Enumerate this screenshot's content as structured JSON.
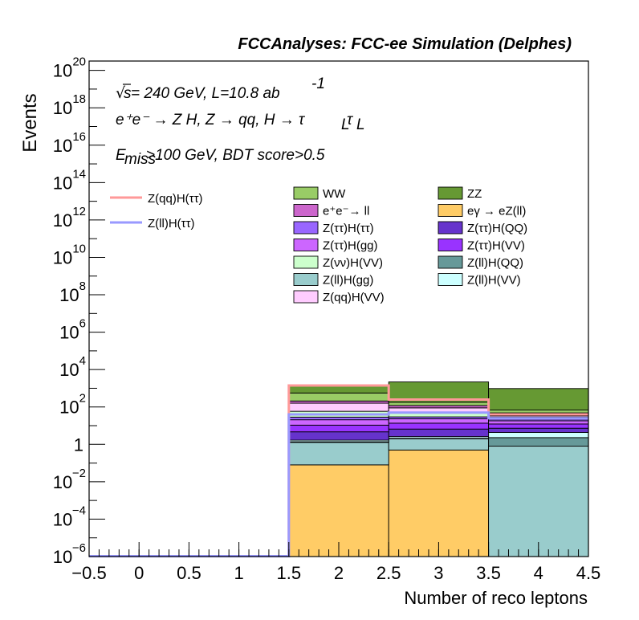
{
  "chart_data": {
    "type": "bar",
    "stacked": true,
    "log_y": true,
    "title": "FCCAnalyses: FCC-ee Simulation (Delphes)",
    "xlabel": "Number of reco leptons",
    "ylabel": "Events",
    "xlim": [
      -0.5,
      4.5
    ],
    "ylim_exp": [
      -6,
      20.5
    ],
    "bin_edges": [
      -0.5,
      0.5,
      1.5,
      2.5,
      3.5,
      4.5
    ],
    "x_ticks": [
      "−0.5",
      "0",
      "0.5",
      "1",
      "1.5",
      "2",
      "2.5",
      "3",
      "3.5",
      "4",
      "4.5"
    ],
    "y_ticks": [
      {
        "exp": 20,
        "base": "10",
        "sup": "20"
      },
      {
        "exp": 18,
        "base": "10",
        "sup": "18"
      },
      {
        "exp": 16,
        "base": "10",
        "sup": "16"
      },
      {
        "exp": 14,
        "base": "10",
        "sup": "14"
      },
      {
        "exp": 12,
        "base": "10",
        "sup": "12"
      },
      {
        "exp": 10,
        "base": "10",
        "sup": "10"
      },
      {
        "exp": 8,
        "base": "10",
        "sup": "8"
      },
      {
        "exp": 6,
        "base": "10",
        "sup": "6"
      },
      {
        "exp": 4,
        "base": "10",
        "sup": "4"
      },
      {
        "exp": 2,
        "base": "10",
        "sup": "2"
      },
      {
        "exp": 0,
        "base": "1",
        "sup": ""
      },
      {
        "exp": -2,
        "base": "10",
        "sup": "−2"
      },
      {
        "exp": -4,
        "base": "10",
        "sup": "−4"
      },
      {
        "exp": -6,
        "base": "10",
        "sup": "−6"
      }
    ],
    "annotations": {
      "energy_sqrt": "s",
      "energy_rest": " = 240 GeV, L=10.8 ab",
      "energy_sup": "-1",
      "process": "e⁺e⁻ → Z H, Z → qq, H → τ",
      "process_sub": "L",
      "process_tau2": "τ",
      "process_sub2": "L",
      "cut_e": "E",
      "cut_sub": "miss",
      "cut_rest": ">100 GeV, BDT score>0.5"
    },
    "stack_series": [
      {
        "name": "eγ → eZ(ll)",
        "color": "#ffcc66",
        "values": [
          0,
          0,
          0.08,
          0.5,
          0
        ]
      },
      {
        "name": "Z(ll)H(gg)",
        "color": "#99cccc",
        "values": [
          0,
          0,
          1.2,
          1.5,
          0.8
        ]
      },
      {
        "name": "Z(ll)H(QQ)",
        "color": "#669999",
        "values": [
          0,
          0,
          0.1,
          0.1,
          1.5
        ]
      },
      {
        "name": "Z(ll)H(VV)",
        "color": "#ccffff",
        "values": [
          0,
          0,
          0.3,
          0.5,
          2.0
        ]
      },
      {
        "name": "Z(ττ)H(QQ)",
        "color": "#6633cc",
        "values": [
          0,
          0,
          3,
          4,
          3
        ]
      },
      {
        "name": "Z(ττ)H(VV)",
        "color": "#9933ff",
        "values": [
          0,
          0,
          6,
          7,
          5
        ]
      },
      {
        "name": "Z(ττ)H(gg)",
        "color": "#cc66ff",
        "values": [
          0,
          0,
          10,
          10,
          6
        ]
      },
      {
        "name": "Z(ττ)H(ττ)",
        "color": "#9966ff",
        "values": [
          0,
          0,
          8,
          6,
          4
        ]
      },
      {
        "name": "Z(νν)H(VV)",
        "color": "#ccffcc",
        "values": [
          0,
          0,
          30,
          20,
          6
        ]
      },
      {
        "name": "Z(qq)H(VV)",
        "color": "#ffccff",
        "values": [
          0,
          0,
          100,
          40,
          5
        ]
      },
      {
        "name": "e⁺e⁻→ ll",
        "color": "#cc66cc",
        "values": [
          0,
          0,
          50,
          30,
          15
        ]
      },
      {
        "name": "WW",
        "color": "#99cc66",
        "values": [
          0,
          0,
          350,
          60,
          20
        ]
      },
      {
        "name": "ZZ",
        "color": "#669933",
        "values": [
          0,
          0,
          1000,
          2000,
          900
        ]
      }
    ],
    "line_series": [
      {
        "name": "Z(qq)H(ττ)",
        "color": "#ff9999",
        "values": [
          0,
          0,
          1400,
          250,
          40
        ]
      },
      {
        "name": "Z(ll)H(ττ)",
        "color": "#9999ff",
        "values": [
          0,
          0,
          40,
          50,
          25
        ]
      }
    ],
    "legend_columns": [
      [
        "WW",
        "e⁺e⁻→ ll",
        "Z(ττ)H(ττ)",
        "Z(ττ)H(gg)",
        "Z(νν)H(VV)",
        "Z(ll)H(gg)",
        "Z(qq)H(VV)"
      ],
      [
        "ZZ",
        "eγ → eZ(ll)",
        "Z(ττ)H(QQ)",
        "Z(ττ)H(VV)",
        "Z(ll)H(QQ)",
        "Z(ll)H(VV)"
      ]
    ],
    "grid": false,
    "legend_position": "top-right"
  }
}
